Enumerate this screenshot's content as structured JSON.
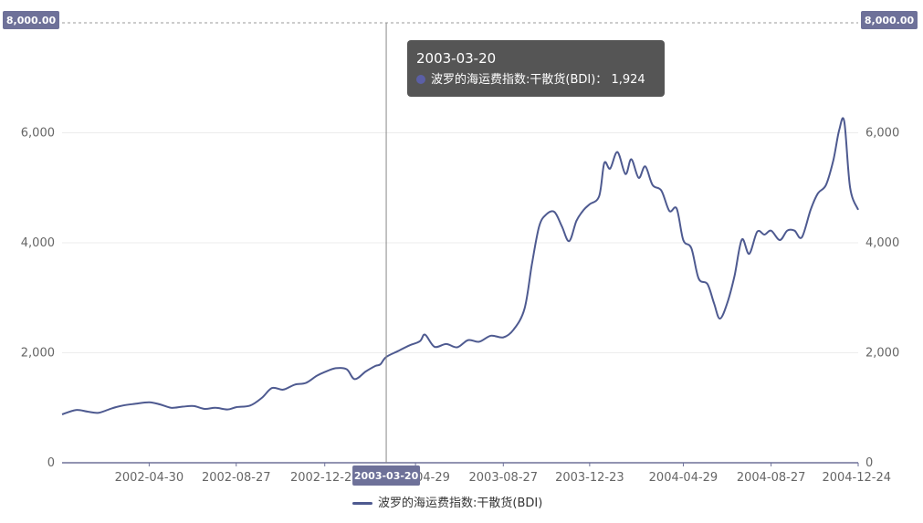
{
  "chart_data": {
    "type": "line",
    "series": [
      {
        "name": "波罗的海运费指数:干散货(BDI)",
        "color": "#4e5a90",
        "points": [
          [
            "2002-01-01",
            880
          ],
          [
            "2002-01-20",
            960
          ],
          [
            "2002-02-05",
            930
          ],
          [
            "2002-02-20",
            910
          ],
          [
            "2002-03-10",
            990
          ],
          [
            "2002-03-25",
            1040
          ],
          [
            "2002-04-10",
            1070
          ],
          [
            "2002-04-30",
            1100
          ],
          [
            "2002-05-15",
            1060
          ],
          [
            "2002-05-30",
            1000
          ],
          [
            "2002-06-15",
            1020
          ],
          [
            "2002-06-30",
            1030
          ],
          [
            "2002-07-15",
            980
          ],
          [
            "2002-07-30",
            1000
          ],
          [
            "2002-08-15",
            970
          ],
          [
            "2002-08-27",
            1010
          ],
          [
            "2002-09-15",
            1040
          ],
          [
            "2002-10-01",
            1180
          ],
          [
            "2002-10-15",
            1360
          ],
          [
            "2002-10-30",
            1330
          ],
          [
            "2002-11-15",
            1420
          ],
          [
            "2002-11-30",
            1450
          ],
          [
            "2002-12-15",
            1580
          ],
          [
            "2002-12-26",
            1650
          ],
          [
            "2003-01-10",
            1720
          ],
          [
            "2003-01-25",
            1700
          ],
          [
            "2003-02-05",
            1520
          ],
          [
            "2003-02-20",
            1660
          ],
          [
            "2003-03-05",
            1760
          ],
          [
            "2003-03-12",
            1790
          ],
          [
            "2003-03-20",
            1924
          ],
          [
            "2003-04-05",
            2030
          ],
          [
            "2003-04-20",
            2130
          ],
          [
            "2003-05-05",
            2210
          ],
          [
            "2003-05-12",
            2330
          ],
          [
            "2003-05-25",
            2110
          ],
          [
            "2003-06-10",
            2160
          ],
          [
            "2003-06-25",
            2100
          ],
          [
            "2003-07-10",
            2230
          ],
          [
            "2003-07-25",
            2200
          ],
          [
            "2003-08-10",
            2310
          ],
          [
            "2003-08-27",
            2280
          ],
          [
            "2003-09-10",
            2420
          ],
          [
            "2003-09-25",
            2800
          ],
          [
            "2003-10-05",
            3600
          ],
          [
            "2003-10-15",
            4300
          ],
          [
            "2003-10-25",
            4520
          ],
          [
            "2003-11-05",
            4560
          ],
          [
            "2003-11-15",
            4300
          ],
          [
            "2003-11-25",
            4030
          ],
          [
            "2003-12-05",
            4400
          ],
          [
            "2003-12-15",
            4600
          ],
          [
            "2003-12-23",
            4700
          ],
          [
            "2004-01-05",
            4850
          ],
          [
            "2004-01-12",
            5450
          ],
          [
            "2004-01-20",
            5350
          ],
          [
            "2004-01-30",
            5650
          ],
          [
            "2004-02-10",
            5250
          ],
          [
            "2004-02-18",
            5520
          ],
          [
            "2004-02-28",
            5180
          ],
          [
            "2004-03-08",
            5390
          ],
          [
            "2004-03-18",
            5050
          ],
          [
            "2004-03-30",
            4950
          ],
          [
            "2004-04-10",
            4580
          ],
          [
            "2004-04-20",
            4620
          ],
          [
            "2004-04-29",
            4050
          ],
          [
            "2004-05-10",
            3900
          ],
          [
            "2004-05-20",
            3350
          ],
          [
            "2004-06-01",
            3250
          ],
          [
            "2004-06-10",
            2900
          ],
          [
            "2004-06-18",
            2620
          ],
          [
            "2004-06-28",
            2900
          ],
          [
            "2004-07-08",
            3400
          ],
          [
            "2004-07-18",
            4060
          ],
          [
            "2004-07-28",
            3800
          ],
          [
            "2004-08-08",
            4200
          ],
          [
            "2004-08-18",
            4150
          ],
          [
            "2004-08-27",
            4220
          ],
          [
            "2004-09-08",
            4050
          ],
          [
            "2004-09-18",
            4220
          ],
          [
            "2004-09-28",
            4220
          ],
          [
            "2004-10-08",
            4100
          ],
          [
            "2004-10-20",
            4600
          ],
          [
            "2004-10-30",
            4900
          ],
          [
            "2004-11-10",
            5050
          ],
          [
            "2004-11-20",
            5500
          ],
          [
            "2004-11-28",
            6050
          ],
          [
            "2004-12-05",
            6200
          ],
          [
            "2004-12-13",
            5000
          ],
          [
            "2004-12-24",
            4600
          ]
        ]
      }
    ],
    "x_ticks": [
      "2002-04-30",
      "2002-08-27",
      "2002-12-26",
      "2003-04-29",
      "2003-08-27",
      "2003-12-23",
      "2004-04-29",
      "2004-08-27",
      "2004-12-24"
    ],
    "x_range": [
      "2002-01-01",
      "2004-12-24"
    ],
    "ylim": [
      0,
      8000
    ],
    "y_ticks": [
      0,
      2000,
      4000,
      6000
    ],
    "y_tick_labels": [
      "0",
      "2,000",
      "4,000",
      "6,000"
    ],
    "y_axis_left_badge": "8,000.00",
    "y_axis_right_badge": "8,000.00",
    "grid": true,
    "legend_position": "bottom-center",
    "crosshair": {
      "x": "2003-03-20",
      "x_badge": "2003-03-20"
    },
    "tooltip": {
      "date": "2003-03-20",
      "label": "波罗的海运费指数:干散货(BDI)：",
      "value": "1,924"
    }
  }
}
